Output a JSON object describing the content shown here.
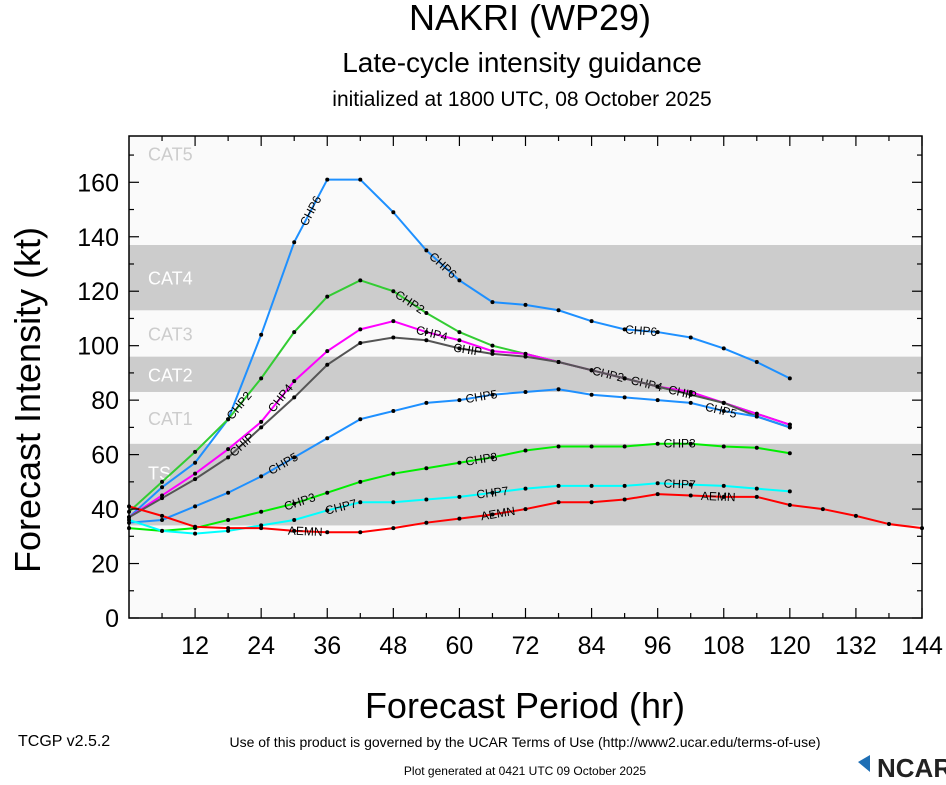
{
  "header": {
    "title": "NAKRI (WP29)",
    "subtitle": "Late-cycle intensity guidance",
    "init": "initialized at 1800 UTC, 08 October 2025"
  },
  "footer": {
    "version": "TCGP v2.5.2",
    "terms": "Use of this product is governed by the UCAR Terms of Use (http://www2.ucar.edu/terms-of-use)",
    "generated": "Plot generated at 0421 UTC   09 October 2025",
    "logo": "NCAR"
  },
  "chart_data": {
    "type": "line",
    "title": "NAKRI (WP29)",
    "xlabel": "Forecast Period (hr)",
    "ylabel": "Forecast Intensity (kt)",
    "xlim": [
      0,
      144
    ],
    "ylim": [
      0,
      177
    ],
    "xticks": [
      12,
      24,
      36,
      48,
      60,
      72,
      84,
      96,
      108,
      120,
      132,
      144
    ],
    "yticks": [
      0,
      20,
      40,
      60,
      80,
      100,
      120,
      140,
      160
    ],
    "grid": false,
    "bands": [
      {
        "label": "TS",
        "min": 34,
        "max": 64,
        "color": "#cccccc"
      },
      {
        "label": "CAT1",
        "min": 64,
        "max": 83,
        "color": "#fafafa"
      },
      {
        "label": "CAT2",
        "min": 83,
        "max": 96,
        "color": "#cccccc"
      },
      {
        "label": "CAT3",
        "min": 96,
        "max": 113,
        "color": "#fafafa"
      },
      {
        "label": "CAT4",
        "min": 113,
        "max": 137,
        "color": "#cccccc"
      },
      {
        "label": "CAT5",
        "min": 137,
        "max": 177,
        "color": "#fafafa"
      }
    ],
    "series": [
      {
        "name": "CHP6",
        "color": "#1e90ff",
        "x": [
          0,
          6,
          12,
          18,
          24,
          30,
          36,
          42,
          48,
          54,
          60,
          66,
          72,
          78,
          84,
          90,
          96,
          102,
          108,
          114,
          120
        ],
        "values": [
          37,
          48,
          57,
          73,
          104,
          138,
          161,
          161,
          149,
          135,
          124,
          116,
          115,
          113,
          109,
          106,
          105,
          103,
          99,
          94,
          88
        ],
        "labels_at": [
          33,
          57,
          93
        ]
      },
      {
        "name": "CHP2",
        "color": "#33cc33",
        "x": [
          0,
          6,
          12,
          18,
          24,
          30,
          36,
          42,
          48,
          54,
          60,
          66,
          72,
          78,
          84,
          90,
          96,
          102,
          108,
          114,
          120
        ],
        "values": [
          39,
          50,
          61,
          73,
          88,
          105,
          118,
          124,
          120,
          112,
          105,
          100,
          97,
          94,
          91,
          88,
          85,
          82,
          79,
          75,
          71
        ],
        "labels_at": [
          20,
          51,
          87
        ]
      },
      {
        "name": "CHP4",
        "color": "#ff00ff",
        "x": [
          0,
          6,
          12,
          18,
          24,
          30,
          36,
          42,
          48,
          54,
          60,
          66,
          72,
          78,
          84,
          90,
          96,
          102,
          108,
          114,
          120
        ],
        "values": [
          37,
          45,
          53,
          62,
          72,
          87,
          98,
          106,
          109,
          105,
          102,
          98,
          97,
          94,
          91,
          88,
          85,
          83,
          79,
          75,
          71
        ],
        "labels_at": [
          23,
          55,
          91
        ]
      },
      {
        "name": "CHIP",
        "color": "#555555",
        "x": [
          0,
          6,
          12,
          18,
          24,
          30,
          36,
          42,
          48,
          54,
          60,
          66,
          72,
          78,
          84,
          90,
          96,
          102,
          108,
          114,
          120
        ],
        "values": [
          37,
          44,
          51,
          59,
          70,
          81,
          93,
          101,
          103,
          102,
          99,
          97,
          96,
          94,
          91,
          88,
          85,
          82,
          79,
          74,
          70
        ],
        "labels_at": [
          25,
          57,
          90
        ]
      },
      {
        "name": "CHP5",
        "color": "#1e90ff",
        "x": [
          0,
          6,
          12,
          18,
          24,
          30,
          36,
          42,
          48,
          54,
          60,
          66,
          72,
          78,
          84,
          90,
          96,
          102,
          108,
          114,
          120
        ],
        "values": [
          35,
          36,
          41,
          46,
          52,
          59,
          66,
          73,
          76,
          79,
          80,
          82,
          83,
          84,
          82,
          81,
          80,
          79,
          76,
          74,
          70
        ],
        "labels_at": [
          28,
          64,
          100
        ]
      },
      {
        "name": "CHP3",
        "color": "#00ee00",
        "x": [
          0,
          6,
          12,
          18,
          24,
          30,
          36,
          42,
          48,
          54,
          60,
          66,
          72,
          78,
          84,
          90,
          96,
          102,
          108,
          114,
          120
        ],
        "values": [
          33,
          32,
          33,
          36,
          39,
          42,
          46,
          50,
          53,
          55,
          57,
          59,
          61.5,
          63,
          63,
          63,
          64,
          64,
          63,
          62.5,
          60.5
        ],
        "labels_at": [
          31,
          64,
          100
        ]
      },
      {
        "name": "CHP7",
        "color": "#00ffff",
        "x": [
          0,
          6,
          12,
          18,
          24,
          30,
          36,
          42,
          48,
          54,
          60,
          66,
          72,
          78,
          84,
          90,
          96,
          102,
          108,
          114,
          120
        ],
        "values": [
          36,
          32,
          31,
          32,
          34,
          36,
          39.5,
          42.5,
          42.5,
          43.5,
          44.5,
          46,
          47.5,
          48.5,
          48.5,
          48.5,
          49.5,
          49,
          48.5,
          47.5,
          46.5
        ],
        "labels_at": [
          31,
          66,
          100
        ]
      },
      {
        "name": "AEMN",
        "color": "#ff0000",
        "x": [
          0,
          6,
          12,
          18,
          24,
          30,
          36,
          42,
          48,
          54,
          60,
          66,
          72,
          78,
          84,
          90,
          96,
          102,
          108,
          114,
          120,
          126,
          132,
          138,
          144
        ],
        "values": [
          41,
          37.5,
          33.5,
          33,
          33,
          32,
          31.5,
          31.5,
          33,
          35,
          36.5,
          38,
          40,
          42.5,
          42.5,
          43.5,
          45.5,
          45,
          44.5,
          44.5,
          41.5,
          40,
          37.5,
          34.5,
          33
        ],
        "labels_at": [
          32,
          67,
          104
        ]
      }
    ]
  }
}
